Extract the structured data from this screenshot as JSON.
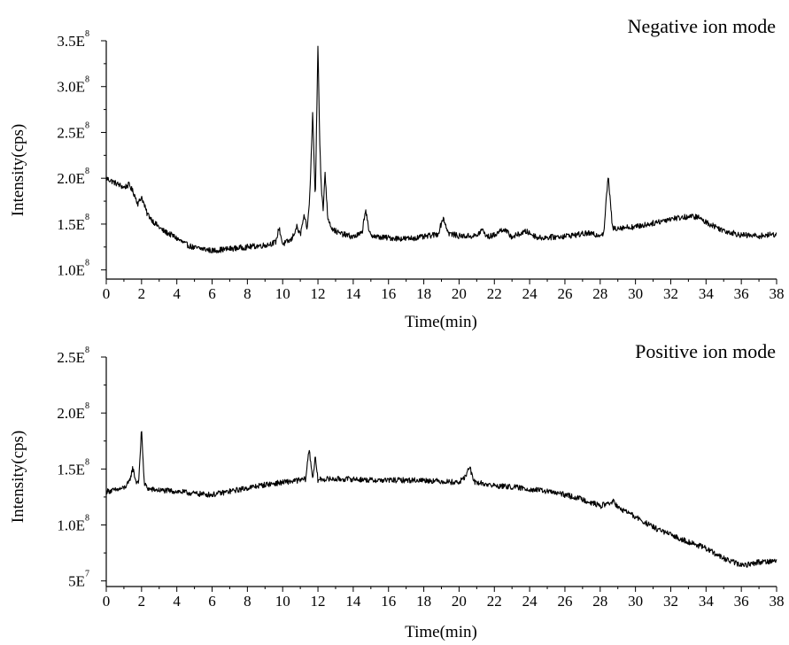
{
  "chart_data": [
    {
      "type": "line",
      "title": "Negative ion mode",
      "xlabel": "Time(min)",
      "ylabel": "Intensity(cps)",
      "xlim": [
        0,
        38
      ],
      "ylim": [
        90000000,
        350000000
      ],
      "x_ticks": [
        0,
        2,
        4,
        6,
        8,
        10,
        12,
        14,
        16,
        18,
        20,
        22,
        24,
        26,
        28,
        30,
        32,
        34,
        36,
        38
      ],
      "y_ticks": [
        {
          "value": 100000000,
          "base": "1.0E",
          "exp": "8"
        },
        {
          "value": 150000000,
          "base": "1.5E",
          "exp": "8"
        },
        {
          "value": 200000000,
          "base": "2.0E",
          "exp": "8"
        },
        {
          "value": 250000000,
          "base": "2.5E",
          "exp": "8"
        },
        {
          "value": 300000000,
          "base": "3.0E",
          "exp": "8"
        },
        {
          "value": 350000000,
          "base": "3.5E",
          "exp": "8"
        }
      ],
      "series": [
        {
          "color": "#000000",
          "x": [
            0,
            0.5,
            1.0,
            1.3,
            1.6,
            1.8,
            2.0,
            2.3,
            2.7,
            3.2,
            3.8,
            4.5,
            5.0,
            5.5,
            6.0,
            7.0,
            8.0,
            9.0,
            9.6,
            9.8,
            10.0,
            10.5,
            10.8,
            11.0,
            11.2,
            11.4,
            11.55,
            11.7,
            11.85,
            12.0,
            12.1,
            12.2,
            12.3,
            12.4,
            12.55,
            12.8,
            13.2,
            14.0,
            14.5,
            14.7,
            14.9,
            15.3,
            16.0,
            17.0,
            18.0,
            18.8,
            19.1,
            19.4,
            20.0,
            21.0,
            21.3,
            21.6,
            22.0,
            22.5,
            23.0,
            23.8,
            24.5,
            25.5,
            26.5,
            27.3,
            27.8,
            28.2,
            28.45,
            28.7,
            29.0,
            30.0,
            31.0,
            32.0,
            33.0,
            33.5,
            34.0,
            35.0,
            36.0,
            37.0,
            38.0
          ],
          "y": [
            200000000,
            195000000,
            190000000,
            193000000,
            182000000,
            172000000,
            180000000,
            162000000,
            152000000,
            143000000,
            137000000,
            128000000,
            124000000,
            123000000,
            121000000,
            123000000,
            125000000,
            127000000,
            130000000,
            146000000,
            128000000,
            133000000,
            147000000,
            138000000,
            158000000,
            145000000,
            185000000,
            272000000,
            175000000,
            350000000,
            240000000,
            185000000,
            165000000,
            208000000,
            158000000,
            145000000,
            140000000,
            136000000,
            140000000,
            167000000,
            140000000,
            136000000,
            135000000,
            134000000,
            136000000,
            139000000,
            157000000,
            140000000,
            137000000,
            137000000,
            144000000,
            136000000,
            138000000,
            145000000,
            136000000,
            142000000,
            135000000,
            136000000,
            138000000,
            140000000,
            138000000,
            140000000,
            203000000,
            145000000,
            146000000,
            147000000,
            151000000,
            156000000,
            158000000,
            158000000,
            152000000,
            143000000,
            138000000,
            137000000,
            139000000
          ]
        }
      ]
    },
    {
      "type": "line",
      "title": "Positive ion mode",
      "xlabel": "Time(min)",
      "ylabel": "Intensity(cps)",
      "xlim": [
        0,
        38
      ],
      "ylim": [
        45000000,
        250000000
      ],
      "x_ticks": [
        0,
        2,
        4,
        6,
        8,
        10,
        12,
        14,
        16,
        18,
        20,
        22,
        24,
        26,
        28,
        30,
        32,
        34,
        36,
        38
      ],
      "y_ticks": [
        {
          "value": 50000000,
          "base": "5E",
          "exp": "7"
        },
        {
          "value": 100000000,
          "base": "1.0E",
          "exp": "8"
        },
        {
          "value": 150000000,
          "base": "1.5E",
          "exp": "8"
        },
        {
          "value": 200000000,
          "base": "2.0E",
          "exp": "8"
        },
        {
          "value": 250000000,
          "base": "2.5E",
          "exp": "8"
        }
      ],
      "series": [
        {
          "color": "#000000",
          "x": [
            0,
            0.5,
            1.0,
            1.3,
            1.5,
            1.7,
            1.85,
            2.0,
            2.15,
            2.4,
            3.0,
            4.0,
            5.0,
            6.0,
            7.0,
            8.0,
            9.0,
            10.0,
            11.0,
            11.3,
            11.5,
            11.7,
            11.85,
            12.0,
            12.2,
            13.0,
            14.0,
            15.0,
            16.0,
            17.0,
            18.0,
            19.0,
            20.0,
            20.4,
            20.6,
            20.8,
            21.0,
            22.0,
            23.0,
            24.0,
            25.0,
            26.0,
            27.0,
            28.0,
            28.8,
            29.0,
            29.5,
            30.0,
            31.0,
            32.0,
            33.0,
            34.0,
            35.0,
            36.0,
            36.5,
            37.0,
            38.0
          ],
          "y": [
            130000000,
            131000000,
            133000000,
            138000000,
            151000000,
            138000000,
            140000000,
            187000000,
            137000000,
            132000000,
            131000000,
            130000000,
            128000000,
            127000000,
            130000000,
            133000000,
            136000000,
            138000000,
            140000000,
            141000000,
            168000000,
            142000000,
            160000000,
            140000000,
            141000000,
            141000000,
            141000000,
            140000000,
            140000000,
            140000000,
            140000000,
            139000000,
            138000000,
            144000000,
            153000000,
            139000000,
            138000000,
            135000000,
            134000000,
            132000000,
            130000000,
            127000000,
            123000000,
            117000000,
            121000000,
            115000000,
            112000000,
            107000000,
            98000000,
            91000000,
            85000000,
            79000000,
            70000000,
            64000000,
            65000000,
            67000000,
            68000000
          ]
        }
      ]
    }
  ]
}
